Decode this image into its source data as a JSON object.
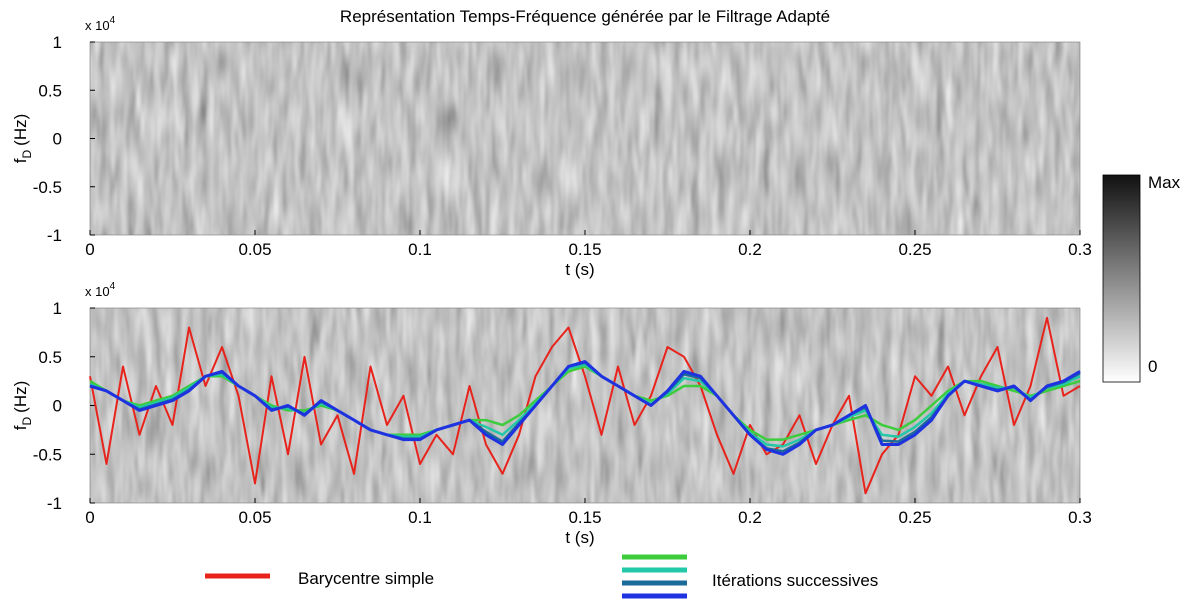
{
  "chart_data": [
    {
      "type": "spectrogram",
      "title": "Représentation Temps-Fréquence générée par le Filtrage Adapté",
      "xlabel": "t (s)",
      "ylabel": {
        "base": "f",
        "sub": "D",
        "unit": "(Hz)"
      },
      "y_scale": {
        "base": "x 10",
        "exponent": "4"
      },
      "xlim": [
        0,
        0.3
      ],
      "xticks": [
        0,
        0.05,
        0.1,
        0.15,
        0.2,
        0.25,
        0.3
      ],
      "ylim": [
        -1,
        1
      ],
      "yticks": [
        -1,
        -0.5,
        0,
        0.5,
        1
      ],
      "colorbar": {
        "top_label": "Max",
        "bottom_label": "0"
      }
    },
    {
      "type": "line",
      "xlabel": "t (s)",
      "ylabel": {
        "base": "f",
        "sub": "D",
        "unit": "(Hz)"
      },
      "y_scale": {
        "base": "x 10",
        "exponent": "4"
      },
      "xlim": [
        0,
        0.3
      ],
      "xticks": [
        0,
        0.05,
        0.1,
        0.15,
        0.2,
        0.25,
        0.3
      ],
      "ylim": [
        -1,
        1
      ],
      "yticks": [
        -1,
        -0.5,
        0,
        0.5,
        1
      ],
      "x": [
        0,
        0.005,
        0.01,
        0.015,
        0.02,
        0.025,
        0.03,
        0.035,
        0.04,
        0.045,
        0.05,
        0.055,
        0.06,
        0.065,
        0.07,
        0.075,
        0.08,
        0.085,
        0.09,
        0.095,
        0.1,
        0.105,
        0.11,
        0.115,
        0.12,
        0.125,
        0.13,
        0.135,
        0.14,
        0.145,
        0.15,
        0.155,
        0.16,
        0.165,
        0.17,
        0.175,
        0.18,
        0.185,
        0.19,
        0.195,
        0.2,
        0.205,
        0.21,
        0.215,
        0.22,
        0.225,
        0.23,
        0.235,
        0.24,
        0.245,
        0.25,
        0.255,
        0.26,
        0.265,
        0.27,
        0.275,
        0.28,
        0.285,
        0.29,
        0.295,
        0.3
      ],
      "series": [
        {
          "name": "Barycentre simple",
          "color": "#e8231c",
          "width": 2,
          "values": [
            0.3,
            -0.6,
            0.4,
            -0.3,
            0.2,
            -0.2,
            0.8,
            0.2,
            0.6,
            0.1,
            -0.8,
            0.3,
            -0.5,
            0.5,
            -0.4,
            -0.1,
            -0.7,
            0.4,
            -0.2,
            0.1,
            -0.6,
            -0.3,
            -0.5,
            0.2,
            -0.4,
            -0.7,
            -0.3,
            0.3,
            0.6,
            0.8,
            0.3,
            -0.3,
            0.4,
            -0.2,
            0.1,
            0.6,
            0.5,
            0.2,
            -0.3,
            -0.7,
            -0.2,
            -0.5,
            -0.4,
            -0.1,
            -0.6,
            -0.2,
            0.1,
            -0.9,
            -0.5,
            -0.3,
            0.3,
            0.1,
            0.4,
            -0.1,
            0.3,
            0.6,
            -0.2,
            0.2,
            0.9,
            0.1,
            0.2
          ]
        },
        {
          "name": "Itérations successives",
          "color": "#3ccc3c",
          "width": 2.5,
          "values": [
            0.25,
            0.15,
            0.05,
            0,
            0.05,
            0.1,
            0.2,
            0.3,
            0.3,
            0.2,
            0.1,
            0,
            -0.05,
            -0.05,
            0,
            -0.05,
            -0.15,
            -0.25,
            -0.3,
            -0.3,
            -0.3,
            -0.25,
            -0.2,
            -0.15,
            -0.15,
            -0.2,
            -0.1,
            0.05,
            0.2,
            0.35,
            0.4,
            0.3,
            0.2,
            0.1,
            0.05,
            0.1,
            0.2,
            0.2,
            0.1,
            -0.1,
            -0.25,
            -0.35,
            -0.35,
            -0.3,
            -0.25,
            -0.2,
            -0.15,
            -0.1,
            -0.2,
            -0.25,
            -0.15,
            0,
            0.15,
            0.25,
            0.25,
            0.2,
            0.15,
            0.1,
            0.15,
            0.2,
            0.25
          ]
        },
        {
          "color": "#22c8a8",
          "width": 2.5,
          "values": [
            0.22,
            0.15,
            0.05,
            -0.02,
            0.03,
            0.08,
            0.18,
            0.3,
            0.32,
            0.2,
            0.1,
            -0.02,
            -0.03,
            -0.08,
            0.02,
            -0.05,
            -0.15,
            -0.25,
            -0.3,
            -0.32,
            -0.32,
            -0.25,
            -0.2,
            -0.15,
            -0.22,
            -0.3,
            -0.15,
            0.02,
            0.2,
            0.38,
            0.42,
            0.3,
            0.2,
            0.1,
            0.02,
            0.12,
            0.28,
            0.25,
            0.1,
            -0.1,
            -0.28,
            -0.4,
            -0.42,
            -0.35,
            -0.25,
            -0.2,
            -0.12,
            -0.05,
            -0.3,
            -0.32,
            -0.22,
            -0.08,
            0.12,
            0.25,
            0.22,
            0.18,
            0.18,
            0.08,
            0.18,
            0.22,
            0.3
          ]
        },
        {
          "color": "#1a6a9a",
          "width": 2.5,
          "values": [
            0.2,
            0.15,
            0.05,
            -0.04,
            0.01,
            0.06,
            0.16,
            0.3,
            0.34,
            0.2,
            0.1,
            -0.04,
            -0.01,
            -0.09,
            0.04,
            -0.05,
            -0.15,
            -0.25,
            -0.3,
            -0.34,
            -0.34,
            -0.25,
            -0.2,
            -0.15,
            -0.27,
            -0.37,
            -0.18,
            0,
            0.2,
            0.4,
            0.44,
            0.3,
            0.2,
            0.1,
            0,
            0.14,
            0.32,
            0.28,
            0.1,
            -0.1,
            -0.3,
            -0.44,
            -0.47,
            -0.38,
            -0.25,
            -0.2,
            -0.1,
            -0.02,
            -0.36,
            -0.37,
            -0.27,
            -0.12,
            0.1,
            0.25,
            0.2,
            0.16,
            0.19,
            0.06,
            0.19,
            0.24,
            0.33
          ]
        },
        {
          "color": "#1e32e0",
          "width": 3,
          "values": [
            0.2,
            0.15,
            0.05,
            -0.05,
            0,
            0.05,
            0.15,
            0.3,
            0.35,
            0.2,
            0.1,
            -0.05,
            0,
            -0.1,
            0.05,
            -0.05,
            -0.15,
            -0.25,
            -0.3,
            -0.35,
            -0.35,
            -0.25,
            -0.2,
            -0.15,
            -0.3,
            -0.4,
            -0.2,
            0,
            0.2,
            0.4,
            0.45,
            0.3,
            0.2,
            0.1,
            0,
            0.15,
            0.35,
            0.3,
            0.1,
            -0.1,
            -0.3,
            -0.45,
            -0.5,
            -0.4,
            -0.25,
            -0.2,
            -0.1,
            0,
            -0.4,
            -0.4,
            -0.3,
            -0.15,
            0.1,
            0.25,
            0.2,
            0.15,
            0.2,
            0.05,
            0.2,
            0.25,
            0.35
          ]
        }
      ]
    }
  ]
}
